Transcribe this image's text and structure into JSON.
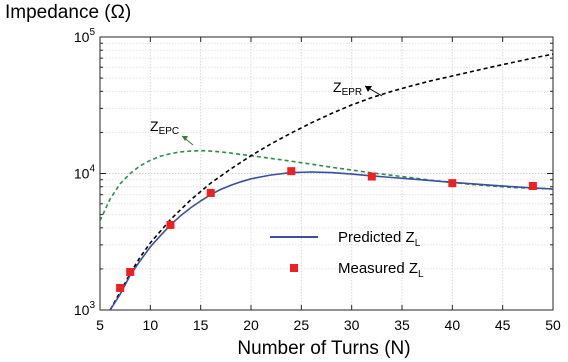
{
  "chart_data": {
    "type": "line",
    "ylabel": "Impedance (Ω)",
    "xlabel": "Number of Turns (N)",
    "xlim": [
      5,
      50
    ],
    "ylim": [
      1000,
      100000
    ],
    "yscale": "log",
    "grid": true,
    "x_ticks": [
      "5",
      "10",
      "15",
      "20",
      "25",
      "30",
      "35",
      "40",
      "45",
      "50"
    ],
    "y_ticks": [
      {
        "base": "10",
        "exp": "3",
        "value": 1000
      },
      {
        "base": "10",
        "exp": "4",
        "value": 10000
      },
      {
        "base": "10",
        "exp": "5",
        "value": 100000
      }
    ],
    "legend_position": "lower-center",
    "series": [
      {
        "name": "Predicted Z_L",
        "legend_label": "Predicted Z",
        "legend_sub": "L",
        "style": "solid",
        "color": "#3a50a0",
        "x": [
          6,
          7,
          8,
          9,
          10,
          11,
          12,
          13,
          14,
          15,
          16,
          17,
          18,
          19,
          20,
          22,
          24,
          26,
          28,
          30,
          32,
          34,
          36,
          38,
          40,
          42,
          44,
          46,
          48,
          50
        ],
        "y": [
          1000,
          1300,
          1800,
          2300,
          2900,
          3500,
          4200,
          4900,
          5600,
          6300,
          7000,
          7650,
          8200,
          8700,
          9150,
          9750,
          10150,
          10250,
          10150,
          9900,
          9600,
          9350,
          9100,
          8850,
          8600,
          8400,
          8200,
          8000,
          7850,
          7700
        ]
      },
      {
        "name": "Measured Z_L",
        "legend_label": "Measured Z",
        "legend_sub": "L",
        "style": "markers",
        "color": "#f02020",
        "x": [
          7,
          8,
          12,
          16,
          24,
          32,
          40,
          48
        ],
        "y": [
          1450,
          1900,
          4200,
          7200,
          10400,
          9500,
          8500,
          8100
        ]
      },
      {
        "name": "Z_EPR",
        "style": "dashed",
        "color": "#000000",
        "x": [
          6,
          7,
          8,
          9,
          10,
          12,
          14,
          16,
          18,
          20,
          22,
          24,
          26,
          28,
          30,
          32,
          34,
          36,
          38,
          40,
          42,
          44,
          46,
          48,
          50
        ],
        "y": [
          1000,
          1350,
          1850,
          2450,
          3100,
          4600,
          6400,
          8500,
          10800,
          13500,
          16500,
          19800,
          23500,
          27500,
          31800,
          36000,
          40000,
          44000,
          48000,
          51800,
          56000,
          60500,
          65000,
          70000,
          75000
        ]
      },
      {
        "name": "Z_EPC",
        "style": "dashed",
        "color": "#2e8b4a",
        "x": [
          5,
          6,
          7,
          8,
          9,
          10,
          11,
          12,
          13,
          14,
          15,
          16,
          17,
          18,
          19,
          20,
          22,
          24,
          26,
          28,
          30,
          32,
          34,
          36,
          38,
          40,
          42,
          44,
          46,
          48,
          50
        ],
        "y": [
          4500,
          6500,
          8400,
          10000,
          11400,
          12500,
          13400,
          14000,
          14400,
          14600,
          14700,
          14600,
          14400,
          14100,
          13800,
          13500,
          12900,
          12300,
          11700,
          11100,
          10600,
          10100,
          9700,
          9300,
          8900,
          8600,
          8300,
          8100,
          7900,
          7800,
          7700
        ]
      }
    ],
    "annotations": [
      {
        "label": "Z",
        "sub": "EPR",
        "target_series": "Z_EPR"
      },
      {
        "label": "Z",
        "sub": "EPC",
        "target_series": "Z_EPC"
      }
    ]
  }
}
